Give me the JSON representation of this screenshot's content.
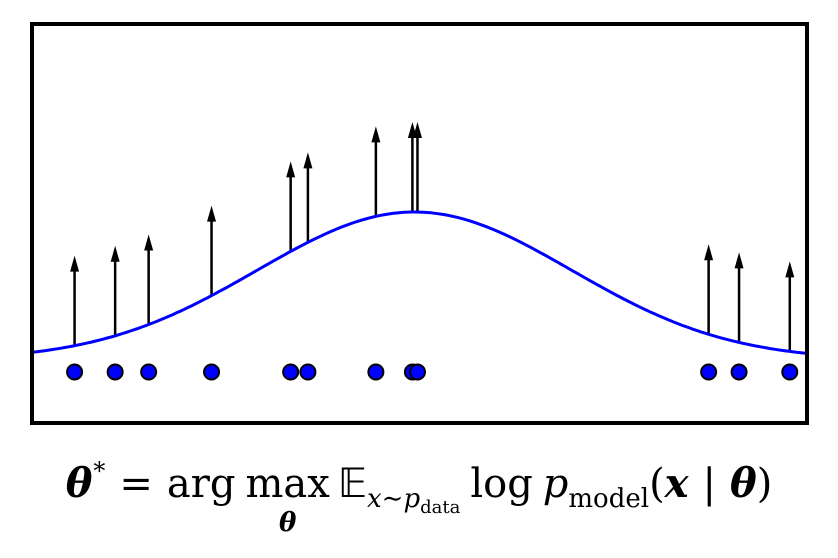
{
  "diagram": {
    "samples": [
      -3.35,
      -2.95,
      -2.62,
      -2.0,
      -1.22,
      -1.05,
      -0.38,
      -0.02,
      0.03,
      2.9,
      3.2,
      3.7
    ],
    "mean": 0.0,
    "sigma": 1.55,
    "x_range": [
      -3.75,
      3.85
    ],
    "curve_color": "#0000ff",
    "point_fill": "#0000ff",
    "point_stroke": "#000000",
    "arrow_color": "#000000"
  },
  "equation": {
    "theta": "θ",
    "star": "*",
    "equals": "=",
    "arg": "arg",
    "max": "max",
    "max_sub": "θ",
    "expect": "𝔼",
    "expect_sub_var": "x∼p",
    "expect_sub_sub": "data",
    "log": "log",
    "p": "p",
    "model": "model",
    "lparen": "(",
    "x": "x",
    "bar": "|",
    "theta2": "θ",
    "rparen": ")"
  }
}
